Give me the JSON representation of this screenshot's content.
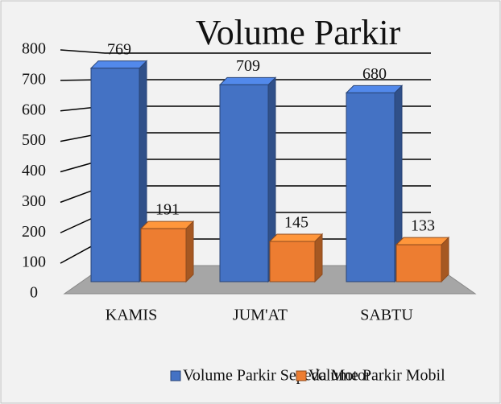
{
  "chart_data": {
    "type": "bar3d",
    "title": "Volume Parkir",
    "categories": [
      "KAMIS",
      "JUM'AT",
      "SABTU"
    ],
    "series": [
      {
        "name": "Volume Parkir Sepeda Motor",
        "color": "#4472c4",
        "values": [
          769,
          709,
          680
        ]
      },
      {
        "name": "Volume Parkir Mobil",
        "color": "#ed7d31",
        "values": [
          191,
          145,
          133
        ]
      }
    ],
    "ylim": [
      0,
      800
    ],
    "yticks": [
      0,
      100,
      200,
      300,
      400,
      500,
      600,
      700,
      800
    ],
    "grid": true,
    "legend": "bottom"
  }
}
